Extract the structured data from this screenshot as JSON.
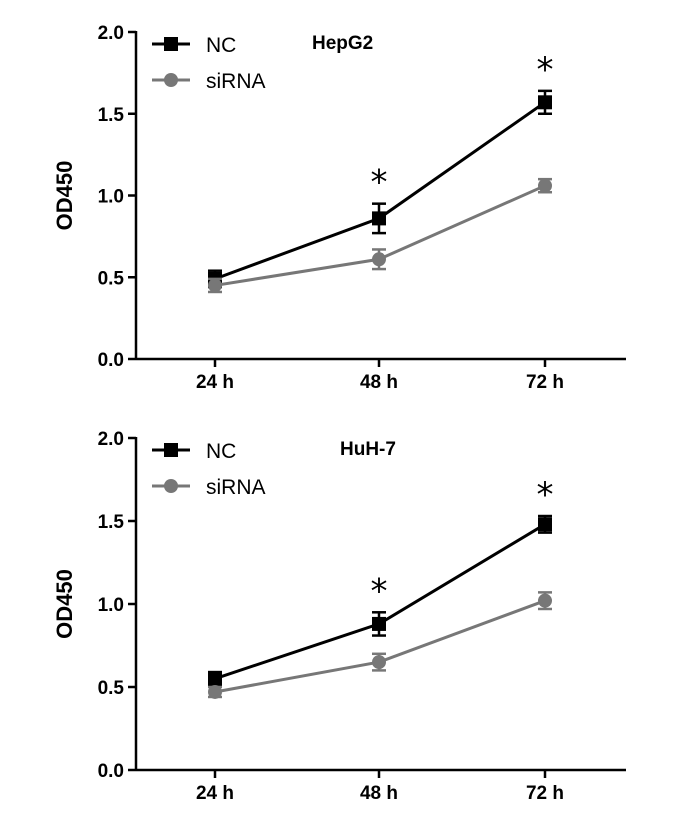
{
  "chart_data": [
    {
      "type": "line",
      "title": "HepG2",
      "xlabel": "",
      "ylabel": "OD450",
      "categories": [
        "24 h",
        "48 h",
        "72 h"
      ],
      "ylim": [
        0,
        2.0
      ],
      "yticks": [
        "0.0",
        "0.5",
        "1.0",
        "1.5",
        "2.0"
      ],
      "legend_position": "top-left",
      "series": [
        {
          "name": "NC",
          "color": "#000000",
          "marker": "square",
          "values": [
            0.49,
            0.86,
            1.57
          ],
          "errors": [
            0.05,
            0.09,
            0.07
          ]
        },
        {
          "name": "siRNA",
          "color": "#777777",
          "marker": "circle",
          "values": [
            0.45,
            0.61,
            1.06
          ],
          "errors": [
            0.04,
            0.06,
            0.04
          ]
        }
      ],
      "annotations": [
        {
          "category": "48 h",
          "text": "*"
        },
        {
          "category": "72 h",
          "text": "*"
        }
      ]
    },
    {
      "type": "line",
      "title": "HuH-7",
      "xlabel": "",
      "ylabel": "OD450",
      "categories": [
        "24 h",
        "48 h",
        "72 h"
      ],
      "ylim": [
        0,
        2.0
      ],
      "yticks": [
        "0.0",
        "0.5",
        "1.0",
        "1.5",
        "2.0"
      ],
      "legend_position": "top-left",
      "series": [
        {
          "name": "NC",
          "color": "#000000",
          "marker": "square",
          "values": [
            0.55,
            0.88,
            1.48
          ],
          "errors": [
            0.04,
            0.07,
            0.05
          ]
        },
        {
          "name": "siRNA",
          "color": "#777777",
          "marker": "circle",
          "values": [
            0.47,
            0.65,
            1.02
          ],
          "errors": [
            0.03,
            0.05,
            0.05
          ]
        }
      ],
      "annotations": [
        {
          "category": "48 h",
          "text": "*"
        },
        {
          "category": "72 h",
          "text": "*"
        }
      ]
    }
  ]
}
